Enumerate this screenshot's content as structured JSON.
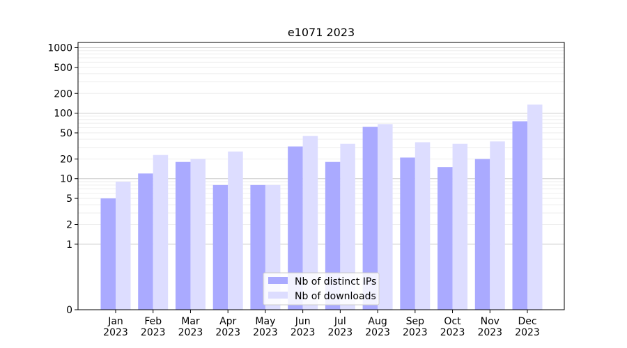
{
  "chart_data": {
    "type": "bar",
    "title": "e1071 2023",
    "xlabel": "",
    "ylabel": "",
    "yscale": "symlog",
    "ylim": [
      0,
      1200
    ],
    "yticks": [
      "0",
      "1",
      "2",
      "5",
      "10",
      "20",
      "50",
      "100",
      "200",
      "500",
      "1000"
    ],
    "categories": [
      [
        "Jan",
        "2023"
      ],
      [
        "Feb",
        "2023"
      ],
      [
        "Mar",
        "2023"
      ],
      [
        "Apr",
        "2023"
      ],
      [
        "May",
        "2023"
      ],
      [
        "Jun",
        "2023"
      ],
      [
        "Jul",
        "2023"
      ],
      [
        "Aug",
        "2023"
      ],
      [
        "Sep",
        "2023"
      ],
      [
        "Oct",
        "2023"
      ],
      [
        "Nov",
        "2023"
      ],
      [
        "Dec",
        "2023"
      ]
    ],
    "series": [
      {
        "name": "Nb of distinct IPs",
        "color": "#aaaaff",
        "values": [
          5,
          12,
          18,
          8,
          8,
          31,
          18,
          62,
          21,
          15,
          20,
          75
        ]
      },
      {
        "name": "Nb of downloads",
        "color": "#ddddff",
        "values": [
          9,
          23,
          20,
          26,
          8,
          45,
          34,
          68,
          36,
          34,
          37,
          135
        ]
      }
    ],
    "grid": true,
    "legend": "lower-center"
  }
}
